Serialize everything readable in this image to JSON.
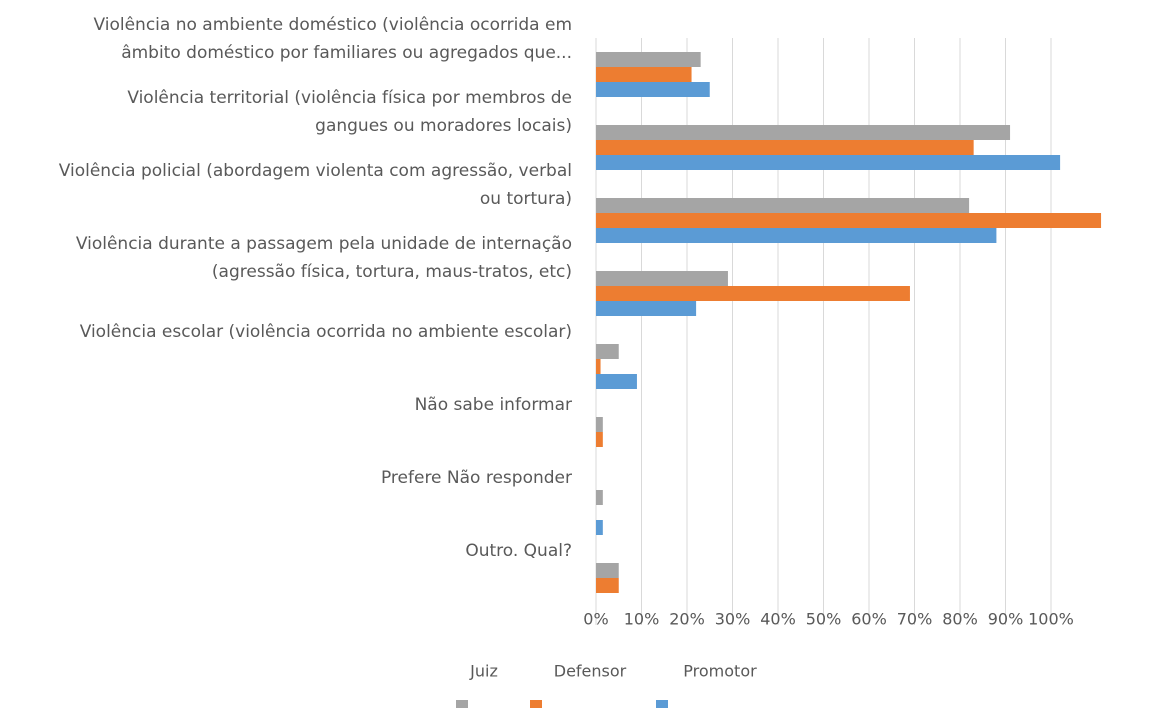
{
  "chart_data": {
    "type": "barh",
    "categories": [
      "Violência no ambiente doméstico (violência ocorrida em\nâmbito doméstico por familiares ou agregados que...",
      "Violência territorial (violência física por membros de\ngangues ou moradores locais)",
      "Violência policial (abordagem violenta com agressão, verbal\nou tortura)",
      "Violência durante a passagem pela unidade de internação\n(agressão física, tortura, maus-tratos, etc)",
      "Violência escolar (violência ocorrida no ambiente escolar)",
      "Não sabe informar",
      "Prefere Não responder",
      "Outro. Qual?"
    ],
    "series": [
      {
        "name": "Juiz",
        "color": "#a5a5a5",
        "values": [
          23,
          91,
          82,
          29,
          5,
          1.5,
          1.5,
          5
        ]
      },
      {
        "name": "Defensor",
        "color": "#ed7d31",
        "values": [
          21,
          83,
          111,
          69,
          1,
          1.5,
          0,
          5
        ]
      },
      {
        "name": "Promotor",
        "color": "#5b9bd5",
        "values": [
          25,
          102,
          88,
          22,
          9,
          0,
          1.5,
          0
        ]
      }
    ],
    "xlim": [
      0,
      115
    ],
    "xticks": [
      {
        "value": 0,
        "label": "0%"
      },
      {
        "value": 10,
        "label": "10%"
      },
      {
        "value": 20,
        "label": "20%"
      },
      {
        "value": 30,
        "label": "30%"
      },
      {
        "value": 40,
        "label": "40%"
      },
      {
        "value": 50,
        "label": "50%"
      },
      {
        "value": 60,
        "label": "60%"
      },
      {
        "value": 70,
        "label": "70%"
      },
      {
        "value": 80,
        "label": "80%"
      },
      {
        "value": 90,
        "label": "90%"
      },
      {
        "value": 100,
        "label": "100%"
      }
    ],
    "grid": true
  }
}
